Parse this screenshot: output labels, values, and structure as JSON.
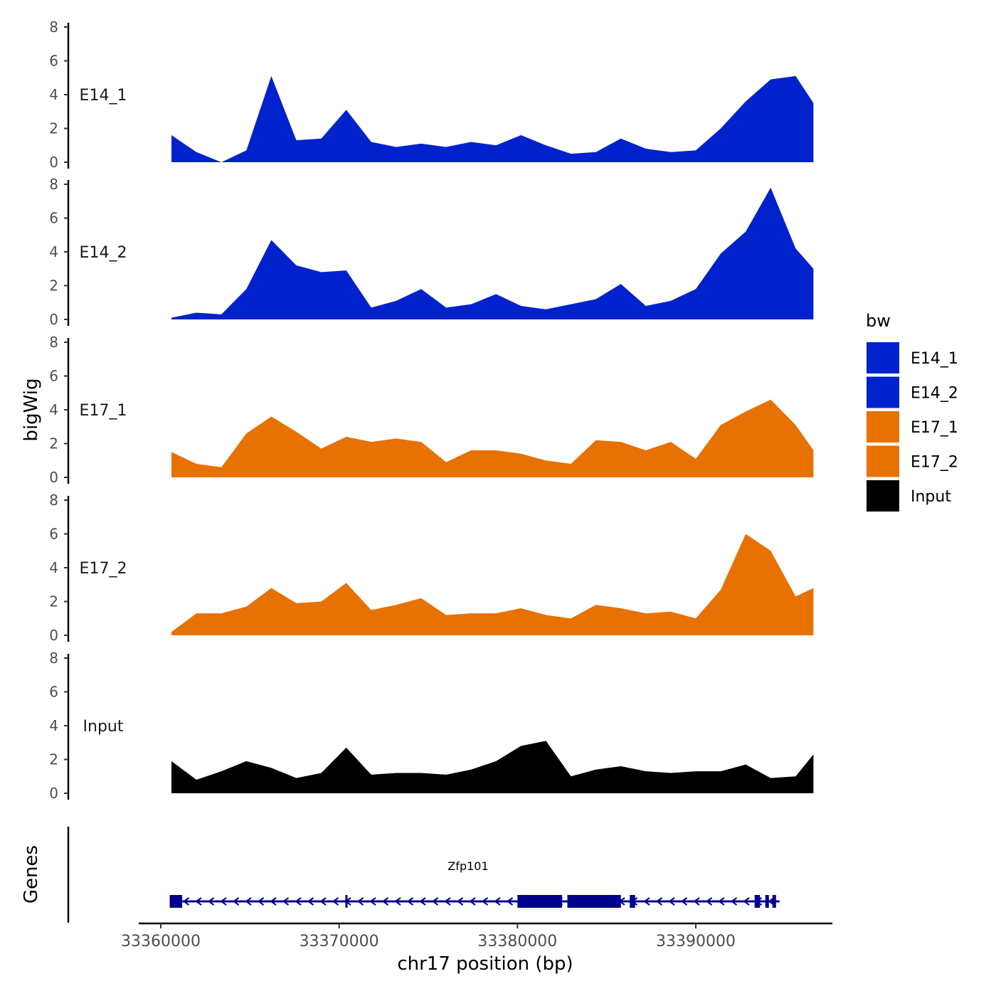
{
  "chart_data": {
    "type": "area",
    "ylabel": "bigWig",
    "xlabel": "chr17 position (bp)",
    "ylim": [
      0,
      8
    ],
    "y_ticks": [
      0,
      2,
      4,
      6,
      8
    ],
    "xlim": [
      33359200,
      33397700
    ],
    "x_ticks": [
      33360000,
      33370000,
      33380000,
      33390000
    ],
    "x_tick_labels": [
      "33360000",
      "33370000",
      "33380000",
      "33390000"
    ],
    "legend": {
      "title": "bw",
      "position": "right",
      "entries": [
        {
          "label": "E14_1",
          "color": "#0022CC"
        },
        {
          "label": "E14_2",
          "color": "#0022CC"
        },
        {
          "label": "E17_1",
          "color": "#E87103"
        },
        {
          "label": "E17_2",
          "color": "#E87103"
        },
        {
          "label": "Input",
          "color": "#000000"
        }
      ]
    },
    "x": [
      33360600,
      33362000,
      33363400,
      33364800,
      33366200,
      33367600,
      33369000,
      33370400,
      33371800,
      33373200,
      33374600,
      33376000,
      33377400,
      33378800,
      33380200,
      33381600,
      33383000,
      33384400,
      33385800,
      33387200,
      33388600,
      33390000,
      33391400,
      33392800,
      33394200,
      33395600,
      33396600
    ],
    "series": [
      {
        "name": "E14_1",
        "color": "#0022CC",
        "values": [
          1.6,
          0.6,
          0,
          0.7,
          5.1,
          1.3,
          1.4,
          3.1,
          1.2,
          0.9,
          1.1,
          0.9,
          1.2,
          1.0,
          1.6,
          1.0,
          0.5,
          0.6,
          1.4,
          0.8,
          0.6,
          0.7,
          2.0,
          3.6,
          4.9,
          5.1,
          3.5
        ]
      },
      {
        "name": "E14_2",
        "color": "#0022CC",
        "values": [
          0.1,
          0.4,
          0.3,
          1.8,
          4.7,
          3.2,
          2.8,
          2.9,
          0.7,
          1.1,
          1.8,
          0.7,
          0.9,
          1.5,
          0.8,
          0.6,
          0.9,
          1.2,
          2.1,
          0.8,
          1.1,
          1.8,
          3.9,
          5.2,
          7.8,
          4.2,
          3.0
        ]
      },
      {
        "name": "E17_1",
        "color": "#E87103",
        "values": [
          1.5,
          0.8,
          0.6,
          2.6,
          3.6,
          2.7,
          1.7,
          2.4,
          2.1,
          2.3,
          2.1,
          0.9,
          1.6,
          1.6,
          1.4,
          1.0,
          0.8,
          2.2,
          2.1,
          1.6,
          2.1,
          1.1,
          3.1,
          3.9,
          4.6,
          3.1,
          1.6
        ]
      },
      {
        "name": "E17_2",
        "color": "#E87103",
        "values": [
          0.2,
          1.3,
          1.3,
          1.7,
          2.8,
          1.9,
          2.0,
          3.1,
          1.5,
          1.8,
          2.2,
          1.2,
          1.3,
          1.3,
          1.6,
          1.2,
          1.0,
          1.8,
          1.6,
          1.3,
          1.4,
          1.0,
          2.7,
          6.0,
          5.0,
          2.3,
          2.8
        ]
      },
      {
        "name": "Input",
        "color": "#000000",
        "values": [
          1.9,
          0.8,
          1.3,
          1.9,
          1.5,
          0.9,
          1.2,
          2.7,
          1.1,
          1.2,
          1.2,
          1.1,
          1.4,
          1.9,
          2.8,
          3.1,
          1.0,
          1.4,
          1.6,
          1.3,
          1.2,
          1.3,
          1.3,
          1.7,
          0.9,
          1.0,
          2.3
        ]
      }
    ],
    "genes_track": {
      "label": "Genes",
      "gene": {
        "name": "Zfp101",
        "start": 33360500,
        "end": 33394700,
        "strand": "-",
        "color": "#00008B",
        "exons": [
          [
            33360500,
            33361200
          ],
          [
            33370350,
            33370450
          ],
          [
            33380000,
            33382500
          ],
          [
            33382800,
            33385800
          ],
          [
            33386300,
            33386600
          ],
          [
            33393300,
            33393600
          ],
          [
            33393900,
            33394100
          ],
          [
            33394300,
            33394500
          ]
        ]
      }
    }
  }
}
